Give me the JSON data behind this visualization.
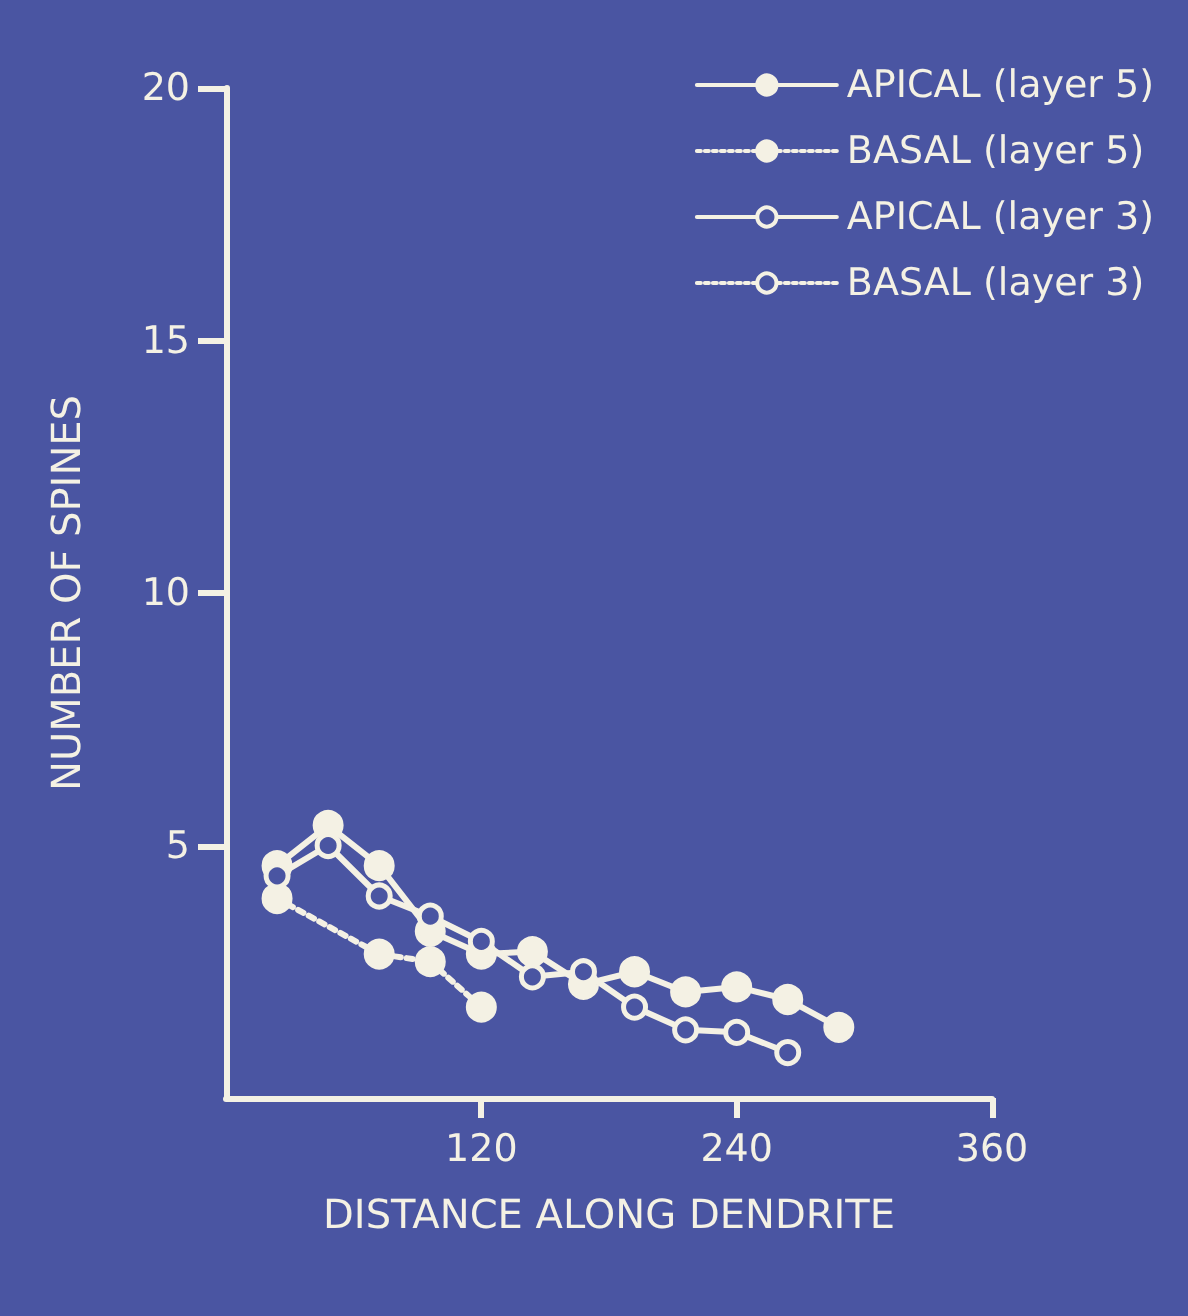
{
  "chart_data": {
    "type": "line",
    "xlabel": "DISTANCE ALONG DENDRITE",
    "ylabel": "NUMBER OF SPINES",
    "xlim": [
      0,
      360
    ],
    "xticks": [
      120,
      240,
      360
    ],
    "ylim": [
      0,
      20
    ],
    "yticks": [
      5,
      10,
      15,
      20
    ],
    "grid": false,
    "legend": "top right",
    "marker": "circle",
    "series": [
      {
        "name": "APICAL (layer 5)",
        "color": "#f4f1e4",
        "line_style": "solid",
        "x": [
          24,
          48,
          72,
          96,
          120,
          144,
          168,
          192,
          216,
          240,
          264,
          288
        ],
        "values": [
          4.6,
          5.4,
          4.6,
          3.3,
          2.85,
          2.9,
          2.25,
          2.5,
          2.1,
          2.2,
          1.95,
          1.4
        ]
      },
      {
        "name": "BASAL (layer 5)",
        "color": "#f4f1e4",
        "line_style": "dotted",
        "x": [
          24,
          72,
          96,
          120
        ],
        "values": [
          3.95,
          2.85,
          2.7,
          1.8
        ]
      },
      {
        "name": "APICAL (layer 3)",
        "color": "#f4f1e4",
        "line_style": "solid",
        "x": [
          24,
          48,
          72,
          96,
          120,
          144,
          168,
          192,
          216,
          240,
          264
        ],
        "values": [
          4.4,
          5.0,
          4.0,
          3.6,
          3.1,
          2.4,
          2.5,
          1.8,
          1.35,
          1.3,
          0.9
        ]
      },
      {
        "name": "BASAL (layer 3)",
        "color": "#f4f1e4",
        "line_style": "dotted"
      }
    ]
  }
}
